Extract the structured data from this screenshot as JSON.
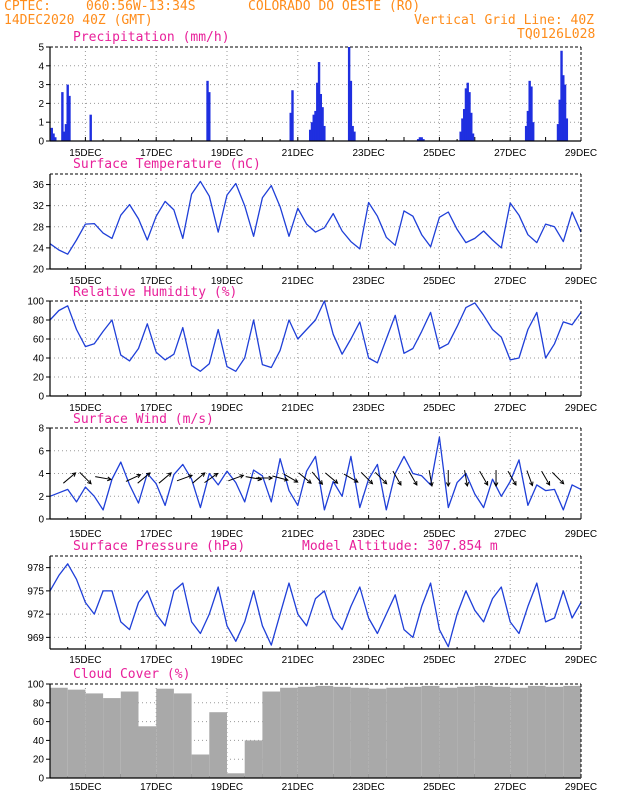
{
  "header": {
    "source": "CPTEC:",
    "coords": "060:56W-13:34S",
    "location": "COLORADO DO OESTE (RO)",
    "run": "14DEC2020 40Z (GMT)",
    "grid_note": "Vertical Grid Line: 40Z",
    "code": "TQ0126L028"
  },
  "colors": {
    "line": "#1f3fd8",
    "bars": "#1f2fe0",
    "cloud": "#a9a9a9",
    "title": "#e8209a",
    "header": "#ff8c1a"
  },
  "chart_data": [
    {
      "type": "bar",
      "title": "Precipitation (mm/h)",
      "x_unit": "days since 14DEC2020 00Z",
      "xlim": [
        0,
        15
      ],
      "xticks": [
        "15DEC",
        "17DEC",
        "19DEC",
        "21DEC",
        "23DEC",
        "25DEC",
        "27DEC",
        "29DEC"
      ],
      "ylim": [
        0,
        5
      ],
      "yticks": [
        0,
        1,
        2,
        3,
        4,
        5
      ],
      "grid": true,
      "x": [
        0.05,
        0.1,
        0.15,
        0.35,
        0.4,
        0.45,
        0.5,
        0.55,
        1.15,
        4.45,
        4.5,
        6.8,
        6.85,
        7.35,
        7.4,
        7.45,
        7.5,
        7.55,
        7.6,
        7.65,
        7.7,
        7.75,
        8.45,
        8.5,
        8.55,
        8.6,
        10.4,
        10.45,
        10.5,
        10.55,
        11.6,
        11.65,
        11.7,
        11.75,
        11.8,
        11.85,
        11.9,
        11.95,
        13.45,
        13.5,
        13.55,
        13.6,
        13.65,
        14.35,
        14.4,
        14.45,
        14.5,
        14.55,
        14.6
      ],
      "values": [
        0.7,
        0.4,
        0.2,
        2.6,
        0.5,
        0.9,
        3.0,
        2.4,
        1.4,
        3.2,
        2.6,
        1.5,
        2.7,
        0.6,
        1.0,
        1.4,
        1.6,
        3.1,
        4.2,
        2.5,
        1.8,
        0.8,
        5.0,
        3.2,
        0.8,
        0.5,
        0.1,
        0.2,
        0.2,
        0.1,
        0.5,
        1.2,
        1.7,
        2.8,
        3.1,
        2.6,
        1.5,
        0.4,
        0.8,
        1.6,
        3.2,
        2.9,
        1.0,
        0.9,
        2.2,
        4.8,
        3.5,
        3.0,
        1.2
      ]
    },
    {
      "type": "line",
      "title": "Surface Temperature (nC)",
      "xlim": [
        0,
        15
      ],
      "xticks": [
        "15DEC",
        "17DEC",
        "19DEC",
        "21DEC",
        "23DEC",
        "25DEC",
        "27DEC",
        "29DEC"
      ],
      "ylim": [
        20,
        38
      ],
      "yticks": [
        20,
        24,
        28,
        32,
        36
      ],
      "grid": true,
      "x": [
        0,
        0.25,
        0.5,
        0.75,
        1,
        1.25,
        1.5,
        1.75,
        2,
        2.25,
        2.5,
        2.75,
        3,
        3.25,
        3.5,
        3.75,
        4,
        4.25,
        4.5,
        4.75,
        5,
        5.25,
        5.5,
        5.75,
        6,
        6.25,
        6.5,
        6.75,
        7,
        7.25,
        7.5,
        7.75,
        8,
        8.25,
        8.5,
        8.75,
        9,
        9.25,
        9.5,
        9.75,
        10,
        10.25,
        10.5,
        10.75,
        11,
        11.25,
        11.5,
        11.75,
        12,
        12.25,
        12.5,
        12.75,
        13,
        13.25,
        13.5,
        13.75,
        14,
        14.25,
        14.5,
        14.75,
        15
      ],
      "series": [
        {
          "name": "Surface Temperature",
          "values": [
            24.8,
            23.6,
            22.8,
            25.5,
            28.5,
            28.6,
            26.8,
            25.8,
            30.2,
            32.2,
            29.5,
            25.5,
            30.0,
            32.8,
            31.2,
            25.8,
            34.2,
            36.6,
            33.8,
            27.0,
            34.0,
            36.2,
            32.0,
            26.2,
            33.5,
            35.8,
            31.8,
            26.2,
            31.5,
            28.5,
            27.0,
            27.8,
            30.5,
            27.2,
            25.2,
            23.8,
            32.6,
            30.0,
            26.0,
            24.5,
            31.0,
            30.0,
            26.5,
            24.2,
            29.8,
            30.8,
            27.5,
            25.0,
            25.8,
            27.2,
            25.5,
            24.0,
            32.5,
            30.2,
            26.5,
            25.0,
            28.5,
            28.0,
            25.2,
            30.8,
            27.0
          ]
        }
      ]
    },
    {
      "type": "line",
      "title": "Relative Humidity (%)",
      "xlim": [
        0,
        15
      ],
      "xticks": [
        "15DEC",
        "17DEC",
        "19DEC",
        "21DEC",
        "23DEC",
        "25DEC",
        "27DEC",
        "29DEC"
      ],
      "ylim": [
        0,
        100
      ],
      "yticks": [
        0,
        20,
        40,
        60,
        80,
        100
      ],
      "grid": true,
      "x": [
        0,
        0.25,
        0.5,
        0.75,
        1,
        1.25,
        1.5,
        1.75,
        2,
        2.25,
        2.5,
        2.75,
        3,
        3.25,
        3.5,
        3.75,
        4,
        4.25,
        4.5,
        4.75,
        5,
        5.25,
        5.5,
        5.75,
        6,
        6.25,
        6.5,
        6.75,
        7,
        7.25,
        7.5,
        7.75,
        8,
        8.25,
        8.5,
        8.75,
        9,
        9.25,
        9.5,
        9.75,
        10,
        10.25,
        10.5,
        10.75,
        11,
        11.25,
        11.5,
        11.75,
        12,
        12.25,
        12.5,
        12.75,
        13,
        13.25,
        13.5,
        13.75,
        14,
        14.25,
        14.5,
        14.75,
        15
      ],
      "series": [
        {
          "name": "Relative Humidity",
          "values": [
            80,
            90,
            95,
            70,
            52,
            55,
            68,
            80,
            43,
            37,
            50,
            76,
            46,
            38,
            44,
            72,
            32,
            26,
            34,
            70,
            31,
            26,
            40,
            80,
            33,
            30,
            48,
            80,
            60,
            70,
            80,
            100,
            65,
            44,
            60,
            78,
            40,
            35,
            60,
            85,
            45,
            50,
            68,
            88,
            50,
            55,
            73,
            93,
            98,
            85,
            70,
            62,
            38,
            40,
            70,
            88,
            40,
            55,
            78,
            75,
            88
          ]
        }
      ]
    },
    {
      "type": "line",
      "title": "Surface Wind (m/s)",
      "xlim": [
        0,
        15
      ],
      "xticks": [
        "15DEC",
        "17DEC",
        "19DEC",
        "21DEC",
        "23DEC",
        "25DEC",
        "27DEC",
        "29DEC"
      ],
      "ylim": [
        0,
        8
      ],
      "yticks": [
        0,
        2,
        4,
        6,
        8
      ],
      "grid": true,
      "x": [
        0,
        0.25,
        0.5,
        0.75,
        1,
        1.25,
        1.5,
        1.75,
        2,
        2.25,
        2.5,
        2.75,
        3,
        3.25,
        3.5,
        3.75,
        4,
        4.25,
        4.5,
        4.75,
        5,
        5.25,
        5.5,
        5.75,
        6,
        6.25,
        6.5,
        6.75,
        7,
        7.25,
        7.5,
        7.75,
        8,
        8.25,
        8.5,
        8.75,
        9,
        9.25,
        9.5,
        9.75,
        10,
        10.25,
        10.5,
        10.75,
        11,
        11.25,
        11.5,
        11.75,
        12,
        12.25,
        12.5,
        12.75,
        13,
        13.25,
        13.5,
        13.75,
        14,
        14.25,
        14.5,
        14.75,
        15
      ],
      "series": [
        {
          "name": "Surface Wind",
          "values": [
            2.0,
            2.3,
            2.6,
            1.5,
            2.8,
            2.0,
            0.8,
            3.5,
            5.0,
            3.0,
            1.4,
            4.0,
            3.1,
            1.2,
            3.9,
            4.8,
            3.5,
            1.0,
            4.0,
            3.0,
            4.2,
            3.2,
            1.5,
            4.3,
            3.8,
            1.5,
            5.3,
            2.5,
            1.2,
            4.2,
            5.5,
            0.8,
            3.3,
            2.0,
            5.5,
            1.0,
            3.5,
            4.8,
            0.8,
            4.0,
            5.5,
            4.0,
            3.8,
            3.0,
            7.2,
            1.0,
            3.2,
            4.0,
            2.2,
            1.0,
            3.5,
            2.0,
            3.3,
            5.2,
            1.2,
            3.0,
            2.5,
            2.6,
            0.8,
            3.0,
            2.6
          ]
        }
      ],
      "wind_arrows": {
        "x": [
          0.55,
          1.0,
          1.5,
          2.35,
          2.65,
          3.25,
          3.8,
          4.2,
          4.55,
          5.25,
          5.75,
          6.05,
          6.5,
          6.8,
          7.2,
          7.55,
          7.95,
          8.5,
          8.95,
          9.35,
          9.8,
          10.25,
          10.75,
          11.25,
          11.75,
          12.25,
          12.6,
          13.05,
          13.55,
          14.0,
          14.35
        ],
        "direction_deg": [
          40,
          315,
          350,
          25,
          40,
          40,
          20,
          40,
          35,
          20,
          350,
          0,
          345,
          330,
          320,
          310,
          320,
          330,
          315,
          315,
          300,
          300,
          280,
          270,
          280,
          300,
          270,
          300,
          290,
          300,
          315
        ]
      }
    },
    {
      "type": "line",
      "title": "Surface Pressure (hPa)",
      "annotation": "Model Altitude: 307.854 m",
      "xlim": [
        0,
        15
      ],
      "xticks": [
        "15DEC",
        "17DEC",
        "19DEC",
        "21DEC",
        "23DEC",
        "25DEC",
        "27DEC",
        "29DEC"
      ],
      "ylim": [
        967.5,
        979.5
      ],
      "yticks": [
        969,
        972,
        975,
        978
      ],
      "grid": true,
      "x": [
        0,
        0.25,
        0.5,
        0.75,
        1,
        1.25,
        1.5,
        1.75,
        2,
        2.25,
        2.5,
        2.75,
        3,
        3.25,
        3.5,
        3.75,
        4,
        4.25,
        4.5,
        4.75,
        5,
        5.25,
        5.5,
        5.75,
        6,
        6.25,
        6.5,
        6.75,
        7,
        7.25,
        7.5,
        7.75,
        8,
        8.25,
        8.5,
        8.75,
        9,
        9.25,
        9.5,
        9.75,
        10,
        10.25,
        10.5,
        10.75,
        11,
        11.25,
        11.5,
        11.75,
        12,
        12.25,
        12.5,
        12.75,
        13,
        13.25,
        13.5,
        13.75,
        14,
        14.25,
        14.5,
        14.75,
        15
      ],
      "series": [
        {
          "name": "Surface Pressure",
          "values": [
            975,
            977,
            978.5,
            976.5,
            973.5,
            972,
            975,
            975,
            971,
            970,
            973.5,
            975,
            972,
            970.5,
            975,
            976,
            971,
            969.5,
            972,
            975.5,
            970.5,
            968.5,
            971,
            975,
            970.5,
            968,
            972,
            976,
            972,
            970.5,
            974,
            975,
            971.5,
            970,
            973,
            975.5,
            971.5,
            969.5,
            972,
            974.5,
            970,
            969,
            973,
            976,
            970,
            967.8,
            972,
            975,
            972.5,
            971,
            974,
            975.5,
            971,
            969.5,
            973,
            976,
            971,
            971.5,
            975,
            971.5,
            973.5
          ]
        }
      ]
    },
    {
      "type": "bar",
      "title": "Cloud Cover (%)",
      "xlim": [
        0,
        15
      ],
      "xticks": [
        "15DEC",
        "17DEC",
        "19DEC",
        "21DEC",
        "23DEC",
        "25DEC",
        "27DEC",
        "29DEC"
      ],
      "ylim": [
        0,
        100
      ],
      "yticks": [
        0,
        20,
        40,
        60,
        80,
        100
      ],
      "grid": true,
      "x": [
        0.25,
        0.75,
        1.25,
        1.75,
        2.25,
        2.75,
        3.25,
        3.75,
        4.25,
        4.75,
        5.25,
        5.75,
        6.25,
        6.75,
        7.25,
        7.75,
        8.25,
        8.75,
        9.25,
        9.75,
        10.25,
        10.75,
        11.25,
        11.75,
        12.25,
        12.75,
        13.25,
        13.75,
        14.25,
        14.75
      ],
      "values": [
        96,
        94,
        90,
        85,
        92,
        55,
        95,
        90,
        25,
        70,
        5,
        40,
        92,
        96,
        97,
        98,
        97,
        96,
        95,
        96,
        97,
        98,
        96,
        97,
        98,
        97,
        96,
        98,
        97,
        98
      ]
    }
  ]
}
